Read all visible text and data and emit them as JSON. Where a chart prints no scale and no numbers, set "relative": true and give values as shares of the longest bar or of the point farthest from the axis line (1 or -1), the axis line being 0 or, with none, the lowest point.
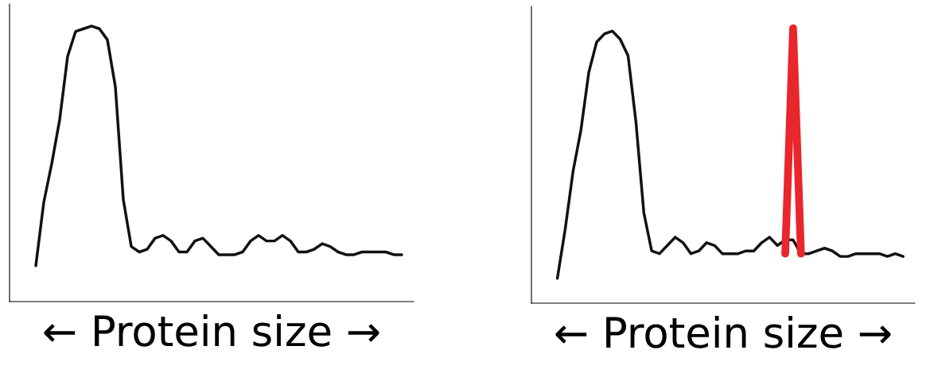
{
  "chart_data": [
    {
      "type": "line",
      "xlabel": "← Protein size →",
      "relative": true,
      "grid": false,
      "legend": false,
      "categories": [
        null,
        null,
        null,
        null,
        null,
        null,
        null,
        null,
        null,
        null,
        null,
        null,
        null,
        null,
        null,
        null,
        null,
        null,
        null,
        null,
        null,
        null,
        null,
        null,
        null,
        null,
        null,
        null,
        null,
        null,
        null,
        null,
        null,
        null,
        null,
        null,
        null,
        null,
        null,
        null,
        null,
        null,
        null,
        null,
        null,
        null,
        null
      ],
      "series": [
        {
          "color": "#111111",
          "values": [
            0.13,
            0.36,
            0.5,
            0.66,
            0.89,
            0.98,
            0.99,
            1.0,
            0.99,
            0.95,
            0.78,
            0.37,
            0.2,
            0.18,
            0.19,
            0.23,
            0.24,
            0.22,
            0.18,
            0.18,
            0.22,
            0.23,
            0.2,
            0.17,
            0.17,
            0.17,
            0.18,
            0.22,
            0.24,
            0.22,
            0.22,
            0.24,
            0.22,
            0.18,
            0.18,
            0.19,
            0.21,
            0.2,
            0.18,
            0.17,
            0.17,
            0.18,
            0.18,
            0.18,
            0.18,
            0.17,
            0.17
          ]
        }
      ]
    },
    {
      "type": "line",
      "xlabel": "← Protein size →",
      "relative": true,
      "grid": false,
      "legend": false,
      "categories": [
        null,
        null,
        null,
        null,
        null,
        null,
        null,
        null,
        null,
        null,
        null,
        null,
        null,
        null,
        null,
        null,
        null,
        null,
        null,
        null,
        null,
        null,
        null,
        null,
        null,
        null,
        null,
        null,
        null,
        null,
        null,
        null,
        null,
        null,
        null,
        null,
        null,
        null,
        null,
        null,
        null,
        null,
        null,
        null,
        null
      ],
      "series": [
        {
          "color": "#111111",
          "values": [
            0.09,
            0.27,
            0.48,
            0.63,
            0.84,
            0.95,
            0.98,
            0.99,
            0.96,
            0.9,
            0.66,
            0.33,
            0.19,
            0.18,
            0.21,
            0.24,
            0.22,
            0.18,
            0.19,
            0.22,
            0.21,
            0.18,
            0.18,
            0.18,
            0.19,
            0.19,
            0.22,
            0.24,
            0.21,
            0.23,
            0.23,
            0.18,
            0.18,
            0.19,
            0.2,
            0.19,
            0.17,
            0.17,
            0.18,
            0.18,
            0.18,
            0.18,
            0.17,
            0.18,
            0.17
          ]
        },
        {
          "color": "#e8262b",
          "values": [
            null,
            null,
            null,
            null,
            null,
            null,
            null,
            null,
            null,
            null,
            null,
            null,
            null,
            null,
            null,
            null,
            null,
            null,
            null,
            null,
            null,
            null,
            null,
            null,
            null,
            null,
            null,
            null,
            null,
            0.18,
            1.0,
            0.18,
            null,
            null,
            null,
            null,
            null,
            null,
            null,
            null,
            null,
            null,
            null,
            null,
            null
          ]
        }
      ]
    }
  ]
}
